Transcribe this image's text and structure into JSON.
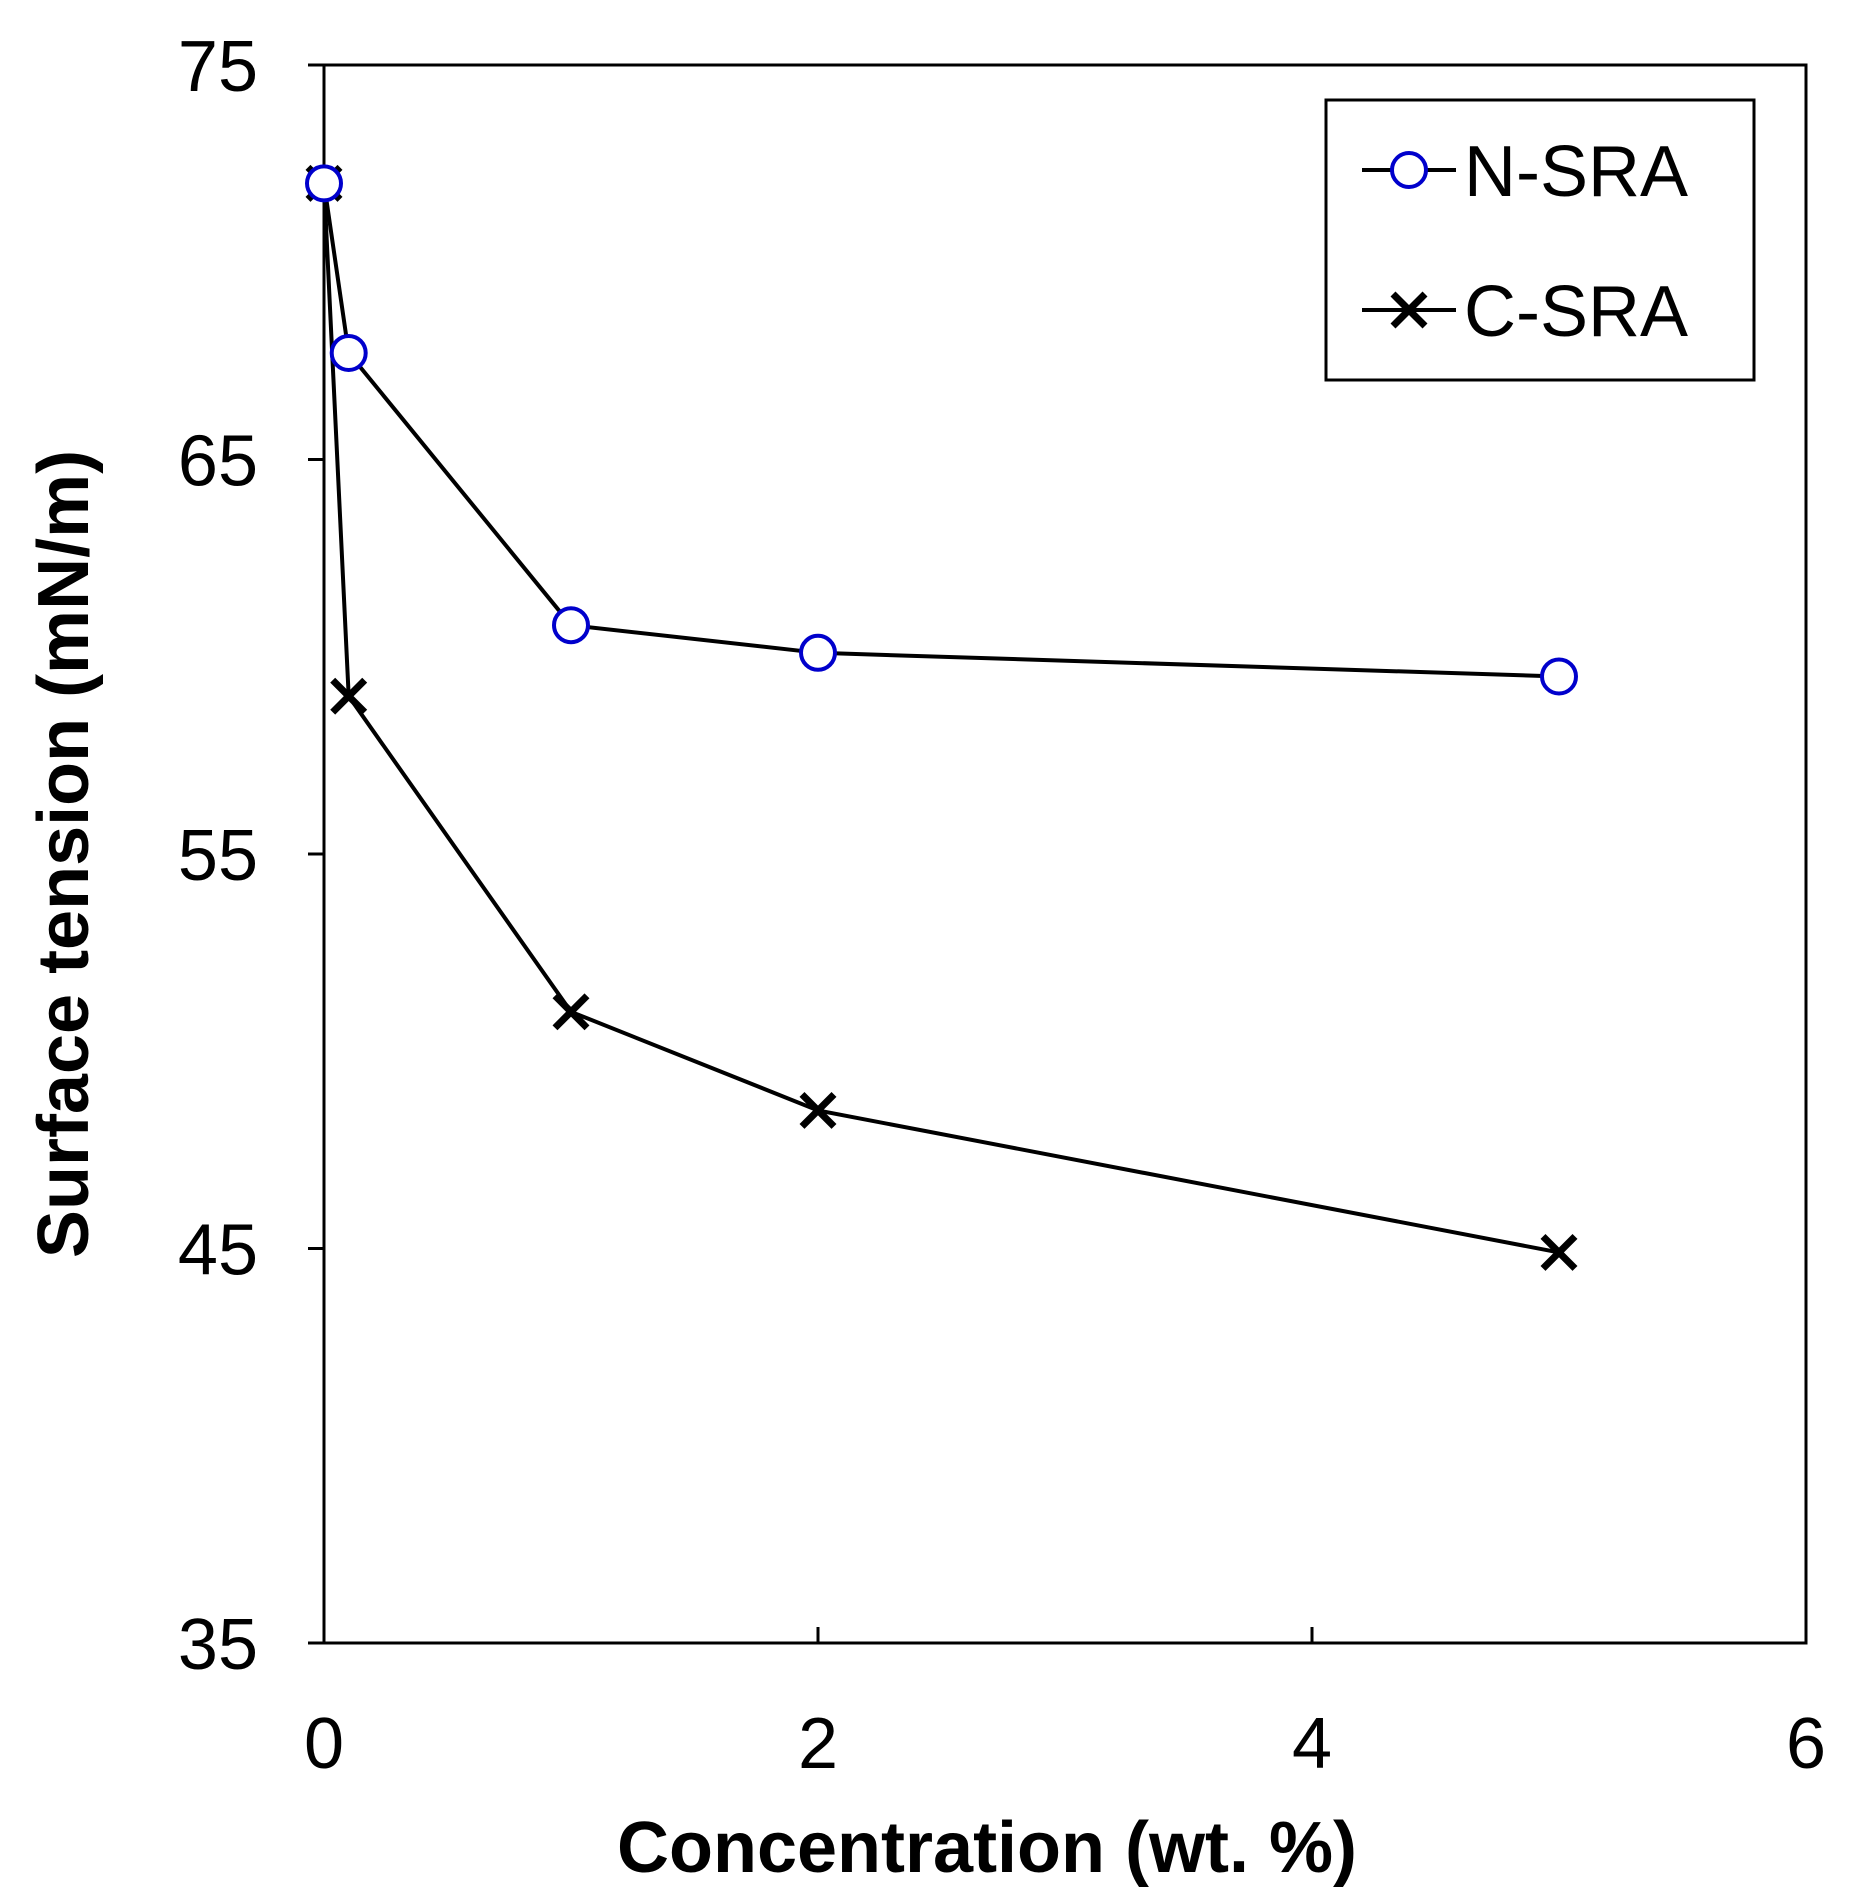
{
  "chart_data": {
    "type": "line",
    "title": "",
    "xlabel": "Concentration (wt. %)",
    "ylabel": "Surface tension (mN/m)",
    "xlim": [
      0,
      6
    ],
    "ylim": [
      35,
      75
    ],
    "xticks": [
      0,
      2,
      4,
      6
    ],
    "yticks": [
      35,
      45,
      55,
      65,
      75
    ],
    "grid": false,
    "legend_position": "top-right",
    "series": [
      {
        "name": "N-SRA",
        "marker": "open-circle",
        "marker_color": "#0000cc",
        "line_color": "#000000",
        "x": [
          0,
          0.1,
          1,
          2,
          5
        ],
        "y": [
          72,
          67.7,
          60.8,
          60.1,
          59.5
        ]
      },
      {
        "name": "C-SRA",
        "marker": "x-cross",
        "marker_color": "#000000",
        "line_color": "#000000",
        "x": [
          0,
          0.1,
          1,
          2,
          5
        ],
        "y": [
          72,
          59,
          51,
          48.5,
          44.9
        ]
      }
    ]
  }
}
